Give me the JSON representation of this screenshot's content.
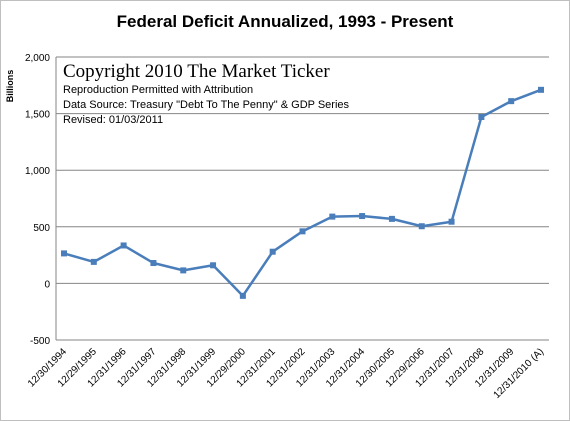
{
  "chart_data": {
    "type": "line",
    "title": "Federal Deficit Annualized, 1993 - Present",
    "ylabel": "Billions",
    "xlabel": "",
    "ylim": [
      -500,
      2000
    ],
    "yticks": [
      -500,
      0,
      500,
      1000,
      1500,
      2000
    ],
    "ytick_labels": [
      "-500",
      "0",
      "500",
      "1,000",
      "1,500",
      "2,000"
    ],
    "grid": "horizontal",
    "categories": [
      "12/30/1994",
      "12/29/1995",
      "12/31/1996",
      "12/31/1997",
      "12/31/1998",
      "12/31/1999",
      "12/29/2000",
      "12/31/2001",
      "12/31/2002",
      "12/31/2003",
      "12/31/2004",
      "12/30/2005",
      "12/29/2006",
      "12/31/2007",
      "12/31/2008",
      "12/31/2009",
      "12/31/2010 (A)"
    ],
    "series": [
      {
        "values": [
          265,
          190,
          335,
          180,
          115,
          160,
          -110,
          280,
          460,
          590,
          595,
          570,
          505,
          545,
          1470,
          1610,
          1710
        ],
        "color": "#4a7ebb"
      }
    ],
    "annotations": [
      "Copyright 2010 The Market Ticker",
      "Reproduction Permitted with Attribution",
      "Data Source:  Treasury \"Debt To The Penny\" & GDP Series",
      "Revised: 01/03/2011"
    ]
  }
}
